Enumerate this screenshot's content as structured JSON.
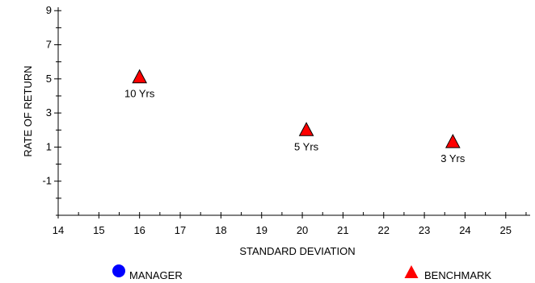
{
  "chart_data": {
    "type": "scatter",
    "xlabel": "STANDARD DEVIATION",
    "ylabel": "RATE OF RETURN",
    "xlim": [
      14,
      25.6
    ],
    "ylim": [
      -3,
      9.2
    ],
    "x_ticks": [
      14,
      15,
      16,
      17,
      18,
      19,
      20,
      21,
      22,
      23,
      24,
      25
    ],
    "y_ticks": [
      -1,
      1,
      3,
      5,
      7,
      9
    ],
    "grid": false,
    "legend_position": "bottom",
    "series": [
      {
        "name": "MANAGER",
        "marker": "circle",
        "color": "#0000ff",
        "points": []
      },
      {
        "name": "BENCHMARK",
        "marker": "triangle",
        "color": "#ff0000",
        "points": [
          {
            "x": 16.0,
            "y": 5.1,
            "label": "10 Yrs"
          },
          {
            "x": 20.1,
            "y": 2.0,
            "label": "5 Yrs"
          },
          {
            "x": 23.7,
            "y": 1.3,
            "label": "3 Yrs"
          }
        ]
      }
    ]
  }
}
